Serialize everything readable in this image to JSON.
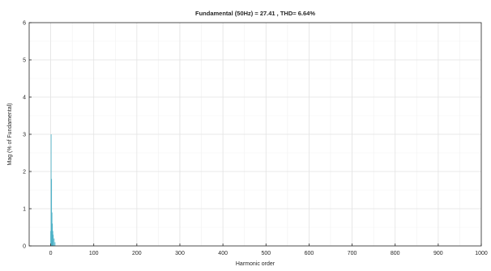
{
  "chart_data": {
    "type": "bar",
    "title": "Fundamental (50Hz) = 27.41 , THD= 6.64%",
    "xlabel": "Harmonic order",
    "ylabel": "Mag (% of Fundamental)",
    "xlim": [
      -50,
      1000
    ],
    "ylim": [
      0,
      6
    ],
    "xticks": [
      0,
      100,
      200,
      300,
      400,
      500,
      600,
      700,
      800,
      900,
      1000
    ],
    "yticks": [
      0,
      1,
      2,
      3,
      4,
      5,
      6
    ],
    "grid": true,
    "series": [
      {
        "x": [
          0,
          1,
          2,
          3,
          4,
          5,
          6,
          8,
          10
        ],
        "values": [
          0.4,
          3.0,
          1.8,
          0.9,
          0.6,
          0.4,
          0.3,
          0.2,
          0.1
        ]
      }
    ],
    "colors": {
      "bar": "#4fb3c8",
      "grid": "#e3e3e3",
      "axis": "#262626",
      "text": "#262626"
    }
  }
}
